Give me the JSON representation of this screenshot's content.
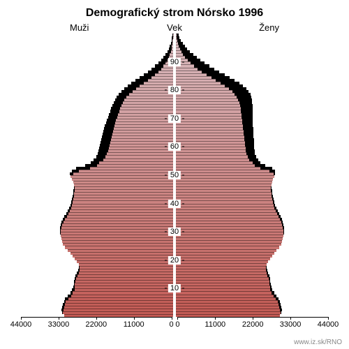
{
  "title": "Demografický strom Nórsko 1996",
  "label_men": "Muži",
  "label_age": "Vek",
  "label_women": "Ženy",
  "credit": "www.iz.sk/RNO",
  "chart": {
    "type": "population-pyramid",
    "x_max": 44000,
    "x_ticks": [
      0,
      11000,
      22000,
      33000,
      44000
    ],
    "x_tick_labels": [
      "0",
      "11000",
      "22000",
      "33000",
      "44000"
    ],
    "background_color": "#ffffff",
    "shadow_color": "#000000",
    "age_ticks": [
      10,
      20,
      30,
      40,
      50,
      60,
      70,
      80,
      90
    ],
    "color_top": "#d9bcc0",
    "color_bottom": "#c25a54",
    "title_fontsize": 16,
    "label_fontsize": 13,
    "tick_fontsize": 11,
    "men": {
      "current": [
        31500,
        31800,
        31600,
        31400,
        31200,
        31000,
        30200,
        29500,
        29000,
        28500,
        28500,
        28400,
        28300,
        28000,
        27600,
        27200,
        27100,
        27000,
        27200,
        27800,
        28400,
        29000,
        29700,
        30500,
        31200,
        31800,
        32100,
        32300,
        32400,
        32500,
        32500,
        32300,
        32000,
        31600,
        31200,
        30700,
        30200,
        29800,
        29500,
        29200,
        29000,
        28800,
        28700,
        28600,
        28500,
        28500,
        28600,
        28800,
        29200,
        29700,
        28800,
        27200,
        24100,
        22000,
        21300,
        20200,
        19600,
        19200,
        18800,
        18600,
        18400,
        18200,
        18000,
        17800,
        17600,
        17400,
        17200,
        17000,
        16800,
        16500,
        16200,
        15900,
        15600,
        15300,
        15000,
        14600,
        14100,
        13500,
        12700,
        11800,
        10800,
        9700,
        8500,
        7300,
        6200,
        5200,
        4300,
        3500,
        2800,
        2200,
        1700,
        1300,
        950,
        700,
        500,
        350,
        240,
        160,
        100,
        60
      ],
      "reference": [
        32000,
        32200,
        32000,
        31800,
        31500,
        31200,
        30400,
        29700,
        29200,
        28800,
        28700,
        28600,
        28500,
        28200,
        27800,
        27400,
        27300,
        27200,
        27400,
        28000,
        28600,
        29200,
        29900,
        30700,
        31400,
        32000,
        32300,
        32500,
        32600,
        32700,
        32700,
        32500,
        32200,
        31800,
        31400,
        30900,
        30400,
        30000,
        29700,
        29400,
        29200,
        29000,
        28900,
        28800,
        28700,
        28700,
        28800,
        29000,
        29400,
        29900,
        29200,
        28000,
        25500,
        23800,
        23000,
        22200,
        21800,
        21600,
        21400,
        21200,
        21000,
        20800,
        20600,
        20400,
        20200,
        20000,
        19700,
        19400,
        19100,
        18800,
        18500,
        18200,
        17900,
        17600,
        17200,
        16800,
        16300,
        15700,
        15000,
        14200,
        13200,
        12100,
        10900,
        9700,
        8500,
        7300,
        6200,
        5200,
        4300,
        3500,
        2800,
        2200,
        1700,
        1300,
        950,
        700,
        500,
        350,
        230,
        150
      ],
      "reference_offset": 1
    },
    "women": {
      "current": [
        30000,
        30200,
        30100,
        29900,
        29700,
        29500,
        28800,
        28200,
        27700,
        27300,
        27200,
        27100,
        27000,
        26800,
        26500,
        26200,
        26100,
        26000,
        26200,
        26700,
        27200,
        27800,
        28400,
        29100,
        29800,
        30400,
        30700,
        30900,
        31000,
        31100,
        31100,
        30900,
        30700,
        30400,
        30000,
        29600,
        29200,
        28800,
        28500,
        28200,
        28000,
        27800,
        27700,
        27600,
        27500,
        27500,
        27600,
        27800,
        28100,
        28500,
        28200,
        27000,
        24500,
        22800,
        22200,
        21200,
        20700,
        20400,
        20200,
        20100,
        20000,
        19900,
        19800,
        19700,
        19600,
        19500,
        19400,
        19300,
        19200,
        19100,
        19000,
        18900,
        18800,
        18700,
        18500,
        18300,
        18000,
        17600,
        17000,
        16300,
        15300,
        14200,
        12900,
        11600,
        10200,
        8800,
        7500,
        6300,
        5200,
        4200,
        3400,
        2700,
        2100,
        1600,
        1200,
        880,
        630,
        440,
        300,
        200
      ],
      "reference": [
        30500,
        30600,
        30500,
        30300,
        30000,
        29700,
        29000,
        28400,
        27900,
        27600,
        27400,
        27300,
        27200,
        27000,
        26700,
        26400,
        26300,
        26200,
        26400,
        26900,
        27400,
        28000,
        28600,
        29300,
        30000,
        30600,
        30900,
        31100,
        31200,
        31300,
        31300,
        31100,
        30900,
        30600,
        30200,
        29800,
        29400,
        29000,
        28700,
        28400,
        28200,
        28000,
        27900,
        27800,
        27700,
        27700,
        27800,
        28000,
        28300,
        28700,
        28600,
        27800,
        25800,
        24400,
        23800,
        23200,
        22900,
        22800,
        22700,
        22700,
        22600,
        22600,
        22500,
        22500,
        22400,
        22400,
        22300,
        22300,
        22300,
        22300,
        22300,
        22300,
        22200,
        22200,
        22100,
        22000,
        21800,
        21500,
        21000,
        20300,
        19400,
        18300,
        17000,
        15600,
        14100,
        12500,
        11000,
        9600,
        8300,
        7100,
        6000,
        5000,
        4100,
        3300,
        2600,
        2000,
        1500,
        1100,
        800,
        570
      ],
      "reference_offset": 1
    }
  }
}
